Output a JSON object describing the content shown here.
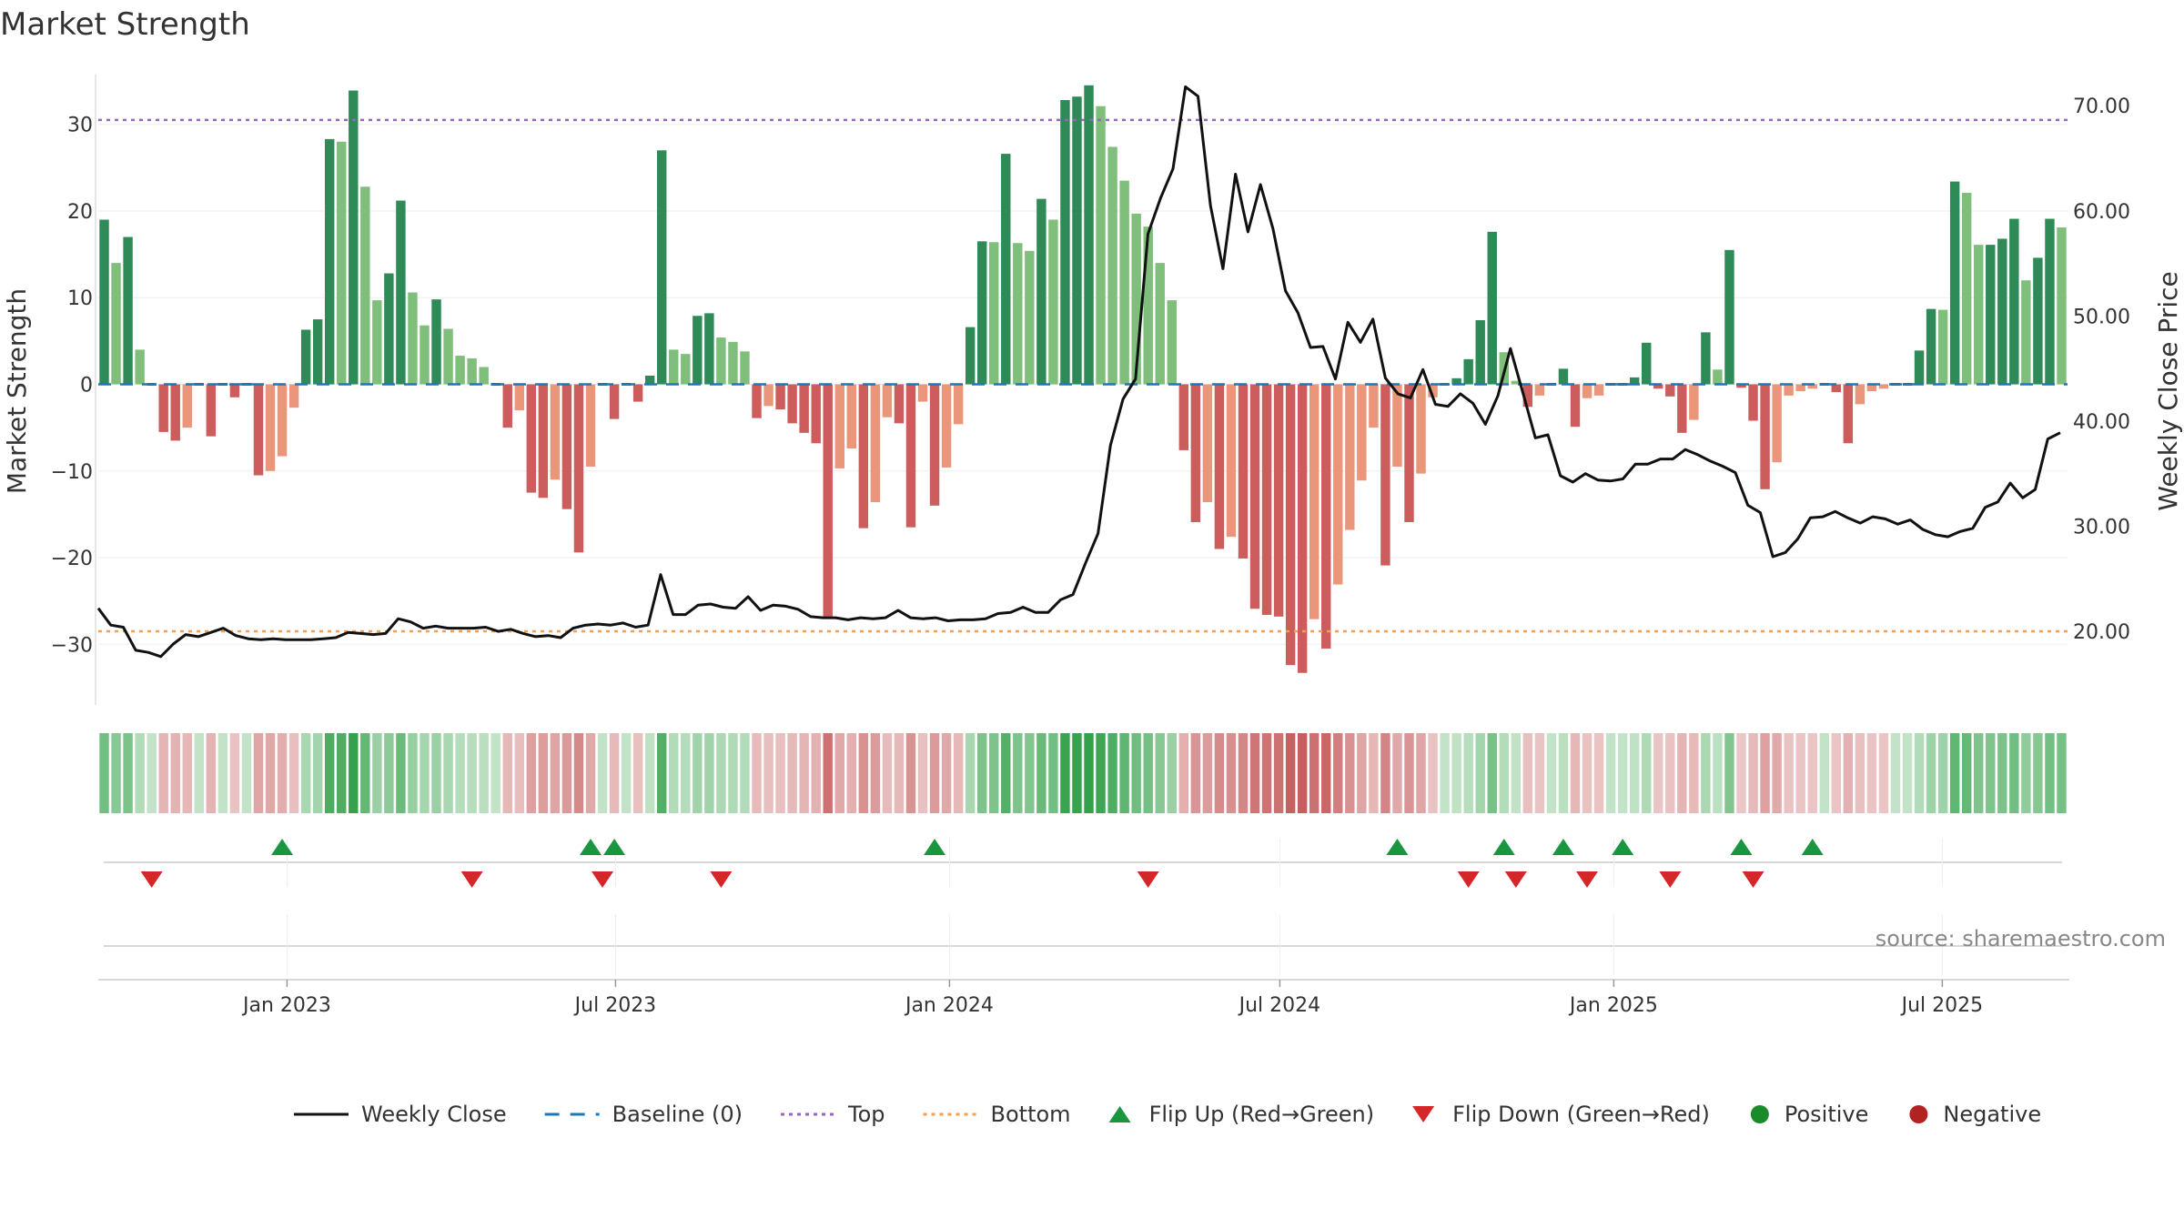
{
  "chart_data": {
    "type": "bar",
    "title": "Market Strength",
    "ylabel_left": "Market Strength",
    "ylabel_right": "Weekly Close Price",
    "ylim_left": [
      -37,
      37
    ],
    "ylim_right": [
      13,
      74
    ],
    "yticks_left": [
      30,
      20,
      10,
      0,
      -10,
      -20,
      -30
    ],
    "yticks_left_labels": [
      "30",
      "20",
      "10",
      "0",
      "−10",
      "−20",
      "−30"
    ],
    "yticks_right": [
      70,
      60,
      50,
      40,
      30,
      20
    ],
    "yticks_right_labels": [
      "70.00",
      "60.00",
      "50.00",
      "40.00",
      "30.00",
      "20.00"
    ],
    "x_start": "2022-09-19",
    "x_end": "2025-09-08",
    "x_ticks": [
      {
        "date": "2023-01-01",
        "label": "Jan 2023"
      },
      {
        "date": "2023-07-01",
        "label": "Jul 2023"
      },
      {
        "date": "2024-01-01",
        "label": "Jan 2024"
      },
      {
        "date": "2024-07-01",
        "label": "Jul 2024"
      },
      {
        "date": "2025-01-01",
        "label": "Jan 2025"
      },
      {
        "date": "2025-07-01",
        "label": "Jul 2025"
      }
    ],
    "top_line": 30.5,
    "bottom_line": -28.5,
    "strength": [
      19,
      14,
      17,
      4,
      0,
      -5.5,
      -6.5,
      -5,
      0,
      -6,
      0,
      -1.5,
      0,
      -10.5,
      -10,
      -8.3,
      -2.7,
      6.3,
      7.5,
      28.3,
      28,
      33.9,
      22.8,
      9.7,
      12.8,
      21.2,
      10.6,
      6.8,
      9.8,
      6.4,
      3.3,
      3,
      2,
      0,
      -5,
      -3,
      -12.5,
      -13.1,
      -11,
      -14.4,
      -19.4,
      -9.5,
      0,
      -4,
      0,
      -2,
      1,
      27,
      4,
      3.5,
      7.9,
      8.2,
      5.4,
      4.9,
      3.8,
      -3.9,
      -2.5,
      -2.9,
      -4.5,
      -5.6,
      -6.8,
      -26.8,
      -9.7,
      -7.4,
      -16.6,
      -13.6,
      -3.8,
      -4.5,
      -16.5,
      -2,
      -14,
      -9.6,
      -4.6,
      6.6,
      16.5,
      16.4,
      26.6,
      16.3,
      15.4,
      21.4,
      19,
      32.8,
      33.2,
      34.5,
      32.1,
      27.4,
      23.5,
      19.7,
      18.2,
      14,
      9.7,
      -7.6,
      -15.9,
      -13.6,
      -19,
      -17.6,
      -20.1,
      -25.9,
      -26.6,
      -26.8,
      -32.4,
      -33.3,
      -27.1,
      -30.5,
      -23.1,
      -16.8,
      -11.1,
      -5,
      -20.9,
      -9.5,
      -15.9,
      -10.3,
      -1.5,
      0,
      0.7,
      2.9,
      7.4,
      17.6,
      3.7,
      0.4,
      -2.6,
      -1.3,
      0,
      1.8,
      -4.9,
      -1.6,
      -1.3,
      0,
      0,
      0.8,
      4.8,
      -0.5,
      -1.4,
      -5.6,
      -4.1,
      6,
      1.7,
      15.5,
      -0.4,
      -4.2,
      -12.1,
      -9,
      -1.3,
      -0.8,
      -0.5,
      0,
      -0.9,
      -6.8,
      -2.3,
      -0.8,
      -0.5,
      0,
      0,
      3.9,
      8.7,
      8.6,
      23.4,
      22.1,
      16.1,
      16.1,
      16.8,
      19.1,
      12,
      14.6,
      19.1,
      18.1
    ],
    "close_prices": [
      [
        0,
        22.2
      ],
      [
        1,
        20.6
      ],
      [
        2,
        20.4
      ],
      [
        3,
        18.2
      ],
      [
        4,
        18
      ],
      [
        5,
        17.6
      ],
      [
        6,
        18.8
      ],
      [
        7,
        19.7
      ],
      [
        8,
        19.5
      ],
      [
        9,
        19.9
      ],
      [
        10,
        20.3
      ],
      [
        11,
        19.6
      ],
      [
        12,
        19.3
      ],
      [
        13,
        19.2
      ],
      [
        14,
        19.3
      ],
      [
        15,
        19.2
      ],
      [
        16,
        19.2
      ],
      [
        17,
        19.2
      ],
      [
        18,
        19.3
      ],
      [
        19,
        19.4
      ],
      [
        20,
        19.9
      ],
      [
        21,
        19.8
      ],
      [
        22,
        19.7
      ],
      [
        23,
        19.8
      ],
      [
        24,
        21.2
      ],
      [
        25,
        20.9
      ],
      [
        26,
        20.3
      ],
      [
        27,
        20.5
      ],
      [
        28,
        20.3
      ],
      [
        29,
        20.3
      ],
      [
        30,
        20.3
      ],
      [
        31,
        20.4
      ],
      [
        32,
        20
      ],
      [
        33,
        20.2
      ],
      [
        34,
        19.8
      ],
      [
        35,
        19.5
      ],
      [
        36,
        19.6
      ],
      [
        37,
        19.4
      ],
      [
        38,
        20.3
      ],
      [
        39,
        20.6
      ],
      [
        40,
        20.7
      ],
      [
        41,
        20.6
      ],
      [
        42,
        20.8
      ],
      [
        43,
        20.4
      ],
      [
        44,
        20.6
      ],
      [
        45,
        25.4
      ],
      [
        46,
        21.6
      ],
      [
        47,
        21.6
      ],
      [
        48,
        22.5
      ],
      [
        49,
        22.6
      ],
      [
        50,
        22.3
      ],
      [
        51,
        22.2
      ],
      [
        52,
        23.3
      ],
      [
        53,
        22
      ],
      [
        54,
        22.5
      ],
      [
        55,
        22.4
      ],
      [
        56,
        22.1
      ],
      [
        57,
        21.4
      ],
      [
        58,
        21.3
      ],
      [
        59,
        21.3
      ],
      [
        60,
        21.1
      ],
      [
        61,
        21.3
      ],
      [
        62,
        21.2
      ],
      [
        63,
        21.3
      ],
      [
        64,
        22
      ],
      [
        65,
        21.3
      ],
      [
        66,
        21.2
      ],
      [
        67,
        21.3
      ],
      [
        68,
        21
      ],
      [
        69,
        21.1
      ],
      [
        70,
        21.1
      ],
      [
        71,
        21.2
      ],
      [
        72,
        21.7
      ],
      [
        73,
        21.8
      ],
      [
        74,
        22.3
      ],
      [
        75,
        21.8
      ],
      [
        76,
        21.8
      ],
      [
        77,
        23
      ],
      [
        78,
        23.5
      ],
      [
        79,
        26.5
      ],
      [
        80,
        29.3
      ],
      [
        81,
        37.7
      ],
      [
        82,
        42.1
      ],
      [
        83,
        44
      ],
      [
        84,
        57.8
      ],
      [
        85,
        61.2
      ],
      [
        86,
        64
      ],
      [
        87,
        71.8
      ],
      [
        88,
        70.9
      ],
      [
        89,
        60.5
      ],
      [
        90,
        54.5
      ],
      [
        91,
        63.5
      ],
      [
        92,
        58
      ],
      [
        93,
        62.5
      ],
      [
        94,
        58.3
      ],
      [
        95,
        52.4
      ],
      [
        96,
        50.3
      ],
      [
        97,
        47
      ],
      [
        98,
        47.1
      ],
      [
        99,
        44
      ],
      [
        100,
        49.4
      ],
      [
        101,
        47.5
      ],
      [
        102,
        49.7
      ],
      [
        103,
        44.1
      ],
      [
        104,
        42.6
      ],
      [
        105,
        42.2
      ],
      [
        106,
        44.9
      ],
      [
        107,
        41.6
      ],
      [
        108,
        41.4
      ],
      [
        109,
        42.6
      ],
      [
        110,
        41.7
      ],
      [
        111,
        39.7
      ],
      [
        112,
        42.4
      ],
      [
        113,
        46.9
      ],
      [
        114,
        42.7
      ],
      [
        115,
        38.4
      ],
      [
        116,
        38.7
      ],
      [
        117,
        34.8
      ],
      [
        118,
        34.2
      ],
      [
        119,
        35
      ],
      [
        120,
        34.4
      ],
      [
        121,
        34.3
      ],
      [
        122,
        34.5
      ],
      [
        123,
        35.9
      ],
      [
        124,
        35.9
      ],
      [
        125,
        36.4
      ],
      [
        126,
        36.4
      ],
      [
        127,
        37.3
      ],
      [
        128,
        36.8
      ],
      [
        129,
        36.2
      ],
      [
        130,
        35.7
      ],
      [
        131,
        35.1
      ],
      [
        132,
        32
      ],
      [
        133,
        31.3
      ],
      [
        134,
        27.1
      ],
      [
        135,
        27.5
      ],
      [
        136,
        28.8
      ],
      [
        137,
        30.8
      ],
      [
        138,
        30.9
      ],
      [
        139,
        31.4
      ],
      [
        140,
        30.8
      ],
      [
        141,
        30.3
      ],
      [
        142,
        30.9
      ],
      [
        143,
        30.7
      ],
      [
        144,
        30.2
      ],
      [
        145,
        30.6
      ],
      [
        146,
        29.7
      ],
      [
        147,
        29.2
      ],
      [
        148,
        29
      ],
      [
        149,
        29.5
      ],
      [
        150,
        29.8
      ],
      [
        151,
        31.8
      ],
      [
        152,
        32.3
      ],
      [
        153,
        34.1
      ],
      [
        154,
        32.7
      ],
      [
        155,
        33.5
      ],
      [
        156,
        38.3
      ],
      [
        157,
        38.9
      ]
    ],
    "flip_up_weeks": [
      15,
      41,
      43,
      70,
      109,
      118,
      123,
      128,
      138,
      144
    ],
    "flip_down_weeks": [
      4,
      31,
      42,
      52,
      88,
      115,
      119,
      125,
      132,
      139
    ],
    "legend": [
      {
        "label": "Weekly Close",
        "kind": "line",
        "color": "#111111"
      },
      {
        "label": "Baseline (0)",
        "kind": "dash",
        "color": "#1f77b4"
      },
      {
        "label": "Top",
        "kind": "dot",
        "color": "#9467bd"
      },
      {
        "label": "Bottom",
        "kind": "dot",
        "color": "#f0a050"
      },
      {
        "label": "Flip Up (Red→Green)",
        "kind": "tri-up",
        "color": "#1a9641"
      },
      {
        "label": "Flip Down (Green→Red)",
        "kind": "tri-down",
        "color": "#d62728"
      },
      {
        "label": "Positive",
        "kind": "circle",
        "color": "#1a8a2a"
      },
      {
        "label": "Negative",
        "kind": "circle",
        "color": "#b22222"
      }
    ],
    "colors": {
      "pos_dark": "#2e8b57",
      "pos_light": "#7fbf7b",
      "neg_dark": "#cd5c5c",
      "neg_light": "#e9967a",
      "close_line": "#111111",
      "baseline": "#1f77b4",
      "top": "#9467bd",
      "bottom": "#f0a050"
    },
    "legend_placement": "bottom-center",
    "grid": true
  },
  "source": "source: sharemaestro.com"
}
